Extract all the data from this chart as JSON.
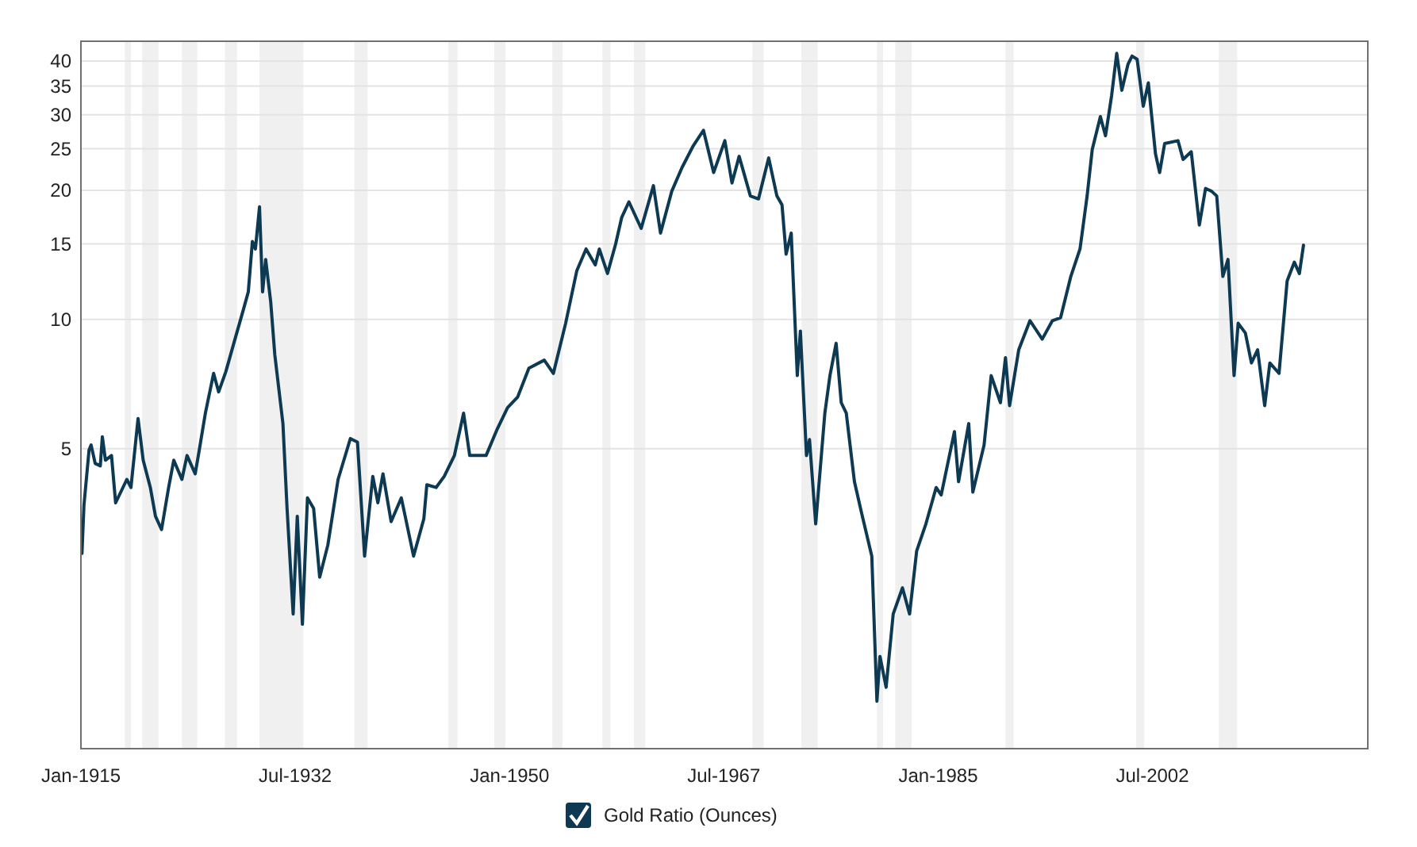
{
  "chart_data": {
    "type": "line",
    "log": true,
    "grid": "y",
    "legend": "bottom",
    "xlim": [
      "1915-01",
      "2020-02"
    ],
    "ylim": [
      1,
      44.5
    ],
    "xticks": [
      {
        "value": "1915-01",
        "label": "Jan-1915"
      },
      {
        "value": "1932-07",
        "label": "Jul-1932"
      },
      {
        "value": "1950-01",
        "label": "Jan-1950"
      },
      {
        "value": "1967-07",
        "label": "Jul-1967"
      },
      {
        "value": "1985-01",
        "label": "Jan-1985"
      },
      {
        "value": "2002-07",
        "label": "Jul-2002"
      }
    ],
    "yticks": [
      5,
      10,
      15,
      20,
      25,
      30,
      35,
      40
    ],
    "bands": [
      {
        "axis": "x",
        "from": "1918-08",
        "to": "1919-02",
        "color": "#f0f0f0"
      },
      {
        "axis": "x",
        "from": "1920-01",
        "to": "1921-05",
        "color": "#f0f0f0"
      },
      {
        "axis": "x",
        "from": "1923-04",
        "to": "1924-07",
        "color": "#f0f0f0"
      },
      {
        "axis": "x",
        "from": "1926-10",
        "to": "1927-10",
        "color": "#f0f0f0"
      },
      {
        "axis": "x",
        "from": "1929-08",
        "to": "1933-03",
        "color": "#f0f0f0"
      },
      {
        "axis": "x",
        "from": "1937-05",
        "to": "1938-06",
        "color": "#f0f0f0"
      },
      {
        "axis": "x",
        "from": "1945-01",
        "to": "1945-10",
        "color": "#f0f0f0"
      },
      {
        "axis": "x",
        "from": "1948-10",
        "to": "1949-09",
        "color": "#f0f0f0"
      },
      {
        "axis": "x",
        "from": "1953-07",
        "to": "1954-05",
        "color": "#f0f0f0"
      },
      {
        "axis": "x",
        "from": "1957-08",
        "to": "1958-04",
        "color": "#f0f0f0"
      },
      {
        "axis": "x",
        "from": "1960-03",
        "to": "1961-02",
        "color": "#f0f0f0"
      },
      {
        "axis": "x",
        "from": "1969-11",
        "to": "1970-10",
        "color": "#f0f0f0"
      },
      {
        "axis": "x",
        "from": "1973-11",
        "to": "1975-03",
        "color": "#f0f0f0"
      },
      {
        "axis": "x",
        "from": "1980-01",
        "to": "1980-07",
        "color": "#f0f0f0"
      },
      {
        "axis": "x",
        "from": "1981-07",
        "to": "1982-11",
        "color": "#f0f0f0"
      },
      {
        "axis": "x",
        "from": "1990-07",
        "to": "1991-03",
        "color": "#f0f0f0"
      },
      {
        "axis": "x",
        "from": "2001-03",
        "to": "2001-11",
        "color": "#f0f0f0"
      },
      {
        "axis": "x",
        "from": "2007-12",
        "to": "2009-06",
        "color": "#f0f0f0"
      }
    ],
    "x": [
      "1915-02",
      "1915-04",
      "1915-09",
      "1915-11",
      "1916-03",
      "1916-08",
      "1916-10",
      "1917-01",
      "1917-07",
      "1917-11",
      "1918-10",
      "1919-02",
      "1919-09",
      "1920-02",
      "1920-09",
      "1921-02",
      "1921-08",
      "1922-03",
      "1922-08",
      "1923-04",
      "1923-09",
      "1924-05",
      "1924-09",
      "1925-03",
      "1925-11",
      "1926-04",
      "1926-11",
      "1927-08",
      "1928-04",
      "1928-09",
      "1929-01",
      "1929-04",
      "1929-08",
      "1929-11",
      "1930-02",
      "1930-07",
      "1930-11",
      "1931-07",
      "1931-11",
      "1932-05",
      "1932-09",
      "1933-02",
      "1933-07",
      "1934-01",
      "1934-07",
      "1935-03",
      "1936-01",
      "1937-01",
      "1937-08",
      "1938-03",
      "1938-11",
      "1939-04",
      "1939-09",
      "1940-05",
      "1941-03",
      "1942-03",
      "1943-01",
      "1943-04",
      "1944-01",
      "1944-09",
      "1945-07",
      "1946-04",
      "1946-10",
      "1948-02",
      "1949-01",
      "1949-11",
      "1950-09",
      "1951-08",
      "1952-11",
      "1953-08",
      "1954-08",
      "1955-07",
      "1956-04",
      "1957-01",
      "1957-05",
      "1958-01",
      "1958-09",
      "1959-03",
      "1959-10",
      "1960-10",
      "1961-10",
      "1962-05",
      "1963-04",
      "1964-02",
      "1965-01",
      "1965-11",
      "1966-09",
      "1967-08",
      "1968-03",
      "1968-10",
      "1969-09",
      "1970-05",
      "1971-03",
      "1971-11",
      "1972-04",
      "1972-08",
      "1973-01",
      "1973-07",
      "1973-10",
      "1974-04",
      "1974-07",
      "1975-01",
      "1975-10",
      "1976-03",
      "1976-09",
      "1977-02",
      "1977-07",
      "1978-03",
      "1978-10",
      "1979-08",
      "1980-01",
      "1980-04",
      "1980-10",
      "1981-05",
      "1982-02",
      "1982-09",
      "1983-04",
      "1984-01",
      "1984-11",
      "1985-04",
      "1986-05",
      "1986-09",
      "1987-07",
      "1987-11",
      "1988-10",
      "1989-05",
      "1990-02",
      "1990-07",
      "1990-11",
      "1991-08",
      "1992-07",
      "1993-07",
      "1994-05",
      "1995-01",
      "1995-11",
      "1996-08",
      "1997-03",
      "1997-08",
      "1998-04",
      "1998-09",
      "1999-03",
      "1999-08",
      "2000-01",
      "2000-07",
      "2000-11",
      "2001-04",
      "2001-10",
      "2002-03",
      "2002-10",
      "2003-02",
      "2003-07",
      "2004-08",
      "2005-01",
      "2005-09",
      "2006-05",
      "2006-11",
      "2007-05",
      "2007-10",
      "2008-04",
      "2008-09",
      "2009-03",
      "2009-07",
      "2010-02",
      "2010-08",
      "2011-02",
      "2011-09",
      "2012-02",
      "2012-11",
      "2013-07",
      "2014-02",
      "2014-07",
      "2014-11"
    ],
    "series": [
      {
        "name": "Gold Ratio (Ounces)",
        "color": "#0d3a52",
        "values": [
          2.85,
          3.69,
          4.97,
          5.1,
          4.62,
          4.56,
          5.33,
          4.7,
          4.82,
          3.74,
          4.24,
          4.06,
          5.88,
          4.7,
          4.06,
          3.48,
          3.24,
          4.06,
          4.7,
          4.24,
          4.82,
          4.37,
          4.97,
          6.05,
          7.49,
          6.78,
          7.56,
          9.0,
          10.5,
          11.6,
          15.2,
          14.6,
          18.3,
          11.6,
          13.8,
          11.0,
          8.27,
          5.72,
          3.63,
          2.06,
          3.48,
          1.95,
          3.84,
          3.63,
          2.51,
          2.98,
          4.24,
          5.28,
          5.18,
          2.81,
          4.31,
          3.74,
          4.37,
          3.38,
          3.84,
          2.81,
          3.43,
          4.12,
          4.06,
          4.31,
          4.82,
          6.05,
          4.82,
          4.82,
          5.56,
          6.23,
          6.6,
          7.7,
          8.04,
          7.49,
          9.8,
          13.0,
          14.6,
          13.4,
          14.6,
          12.8,
          15.0,
          17.3,
          18.8,
          16.3,
          20.5,
          15.9,
          19.9,
          22.6,
          25.4,
          27.6,
          22.0,
          26.1,
          20.8,
          24.0,
          19.4,
          19.1,
          23.8,
          19.4,
          18.5,
          14.2,
          15.9,
          7.4,
          9.4,
          4.82,
          5.25,
          3.34,
          6.05,
          7.4,
          8.8,
          6.4,
          6.05,
          4.19,
          3.54,
          2.81,
          1.29,
          1.64,
          1.39,
          2.06,
          2.37,
          2.06,
          2.89,
          3.34,
          4.06,
          3.9,
          5.48,
          4.19,
          5.72,
          3.96,
          5.1,
          7.4,
          6.4,
          8.15,
          6.3,
          8.5,
          9.94,
          9.0,
          9.94,
          10.1,
          12.6,
          14.6,
          19.4,
          24.9,
          29.7,
          26.8,
          33.2,
          41.7,
          34.2,
          39.3,
          41.1,
          40.4,
          31.4,
          35.6,
          24.3,
          22.0,
          25.7,
          26.1,
          23.6,
          24.6,
          16.6,
          20.2,
          19.9,
          19.4,
          12.6,
          13.8,
          7.4,
          9.8,
          9.3,
          7.92,
          8.5,
          6.3,
          7.92,
          7.49,
          12.3,
          13.6,
          12.8,
          14.9
        ]
      }
    ]
  }
}
